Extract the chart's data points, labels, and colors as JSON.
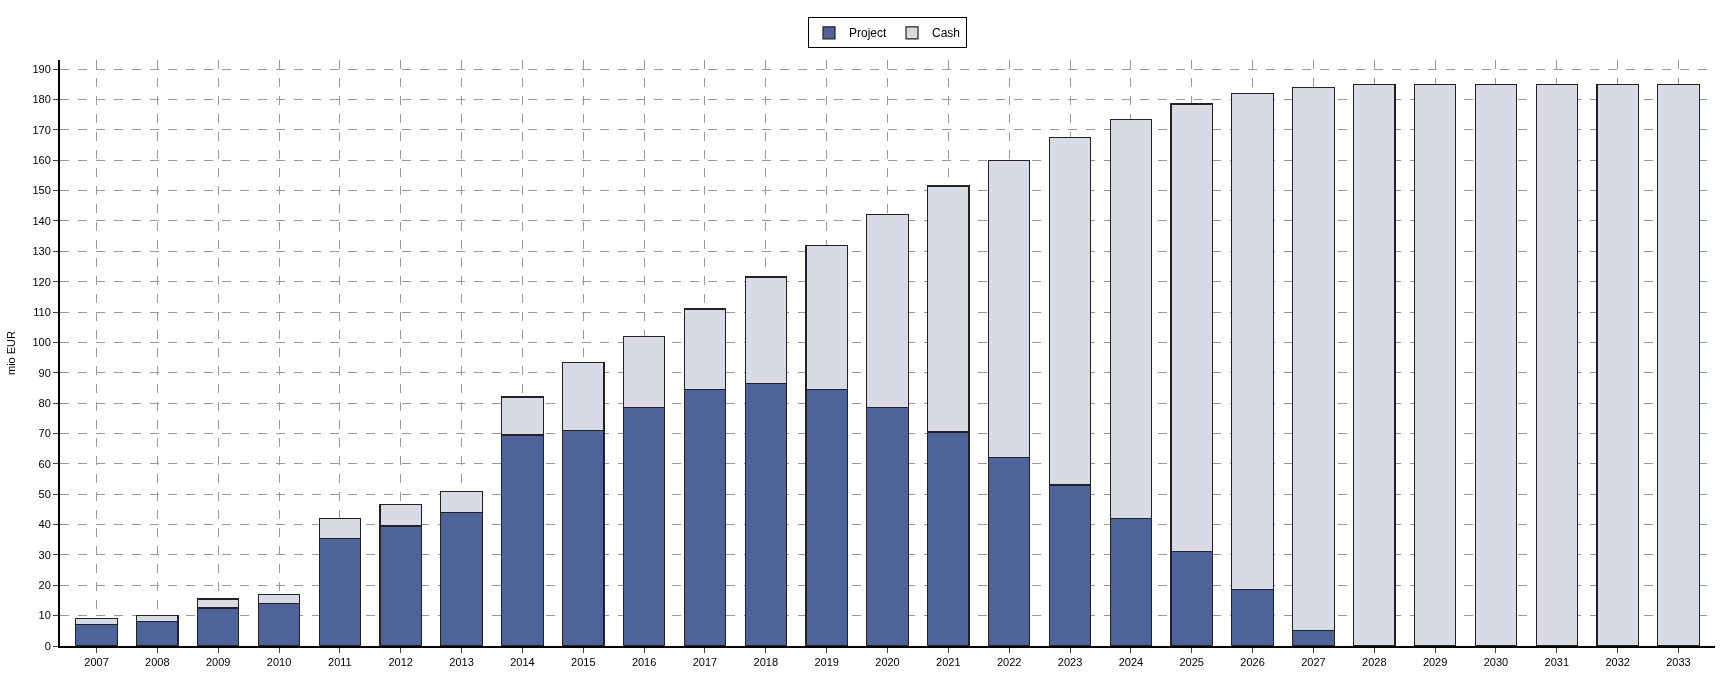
{
  "chart_data": {
    "type": "bar",
    "stacked": true,
    "ylabel": "mio EUR",
    "categories": [
      "2007",
      "2008",
      "2009",
      "2010",
      "2011",
      "2012",
      "2013",
      "2014",
      "2015",
      "2016",
      "2017",
      "2018",
      "2019",
      "2020",
      "2021",
      "2022",
      "2023",
      "2024",
      "2025",
      "2026",
      "2027",
      "2028",
      "2029",
      "2030",
      "2031",
      "2032",
      "2033"
    ],
    "series": [
      {
        "name": "Project",
        "color": "#4d6399",
        "values": [
          7,
          8,
          12.5,
          14,
          35.5,
          39.5,
          44,
          69.5,
          71,
          78.5,
          84.5,
          86.5,
          84.5,
          78.5,
          70.5,
          62,
          53,
          42,
          31,
          18.5,
          5,
          0,
          0,
          0,
          0,
          0,
          0
        ]
      },
      {
        "name": "Cash",
        "color": "#d8dae6",
        "values": [
          2,
          2,
          3,
          3,
          6.5,
          7,
          7,
          12.5,
          22.5,
          23.5,
          26.5,
          35,
          47.5,
          63.5,
          81,
          98,
          114.5,
          131.5,
          147.5,
          163.5,
          179,
          185,
          185,
          185,
          185,
          185,
          185
        ]
      }
    ],
    "ylim": [
      0,
      193
    ],
    "yticks": [
      0,
      10,
      20,
      30,
      40,
      50,
      60,
      70,
      80,
      90,
      100,
      110,
      120,
      130,
      140,
      150,
      160,
      170,
      180,
      190
    ],
    "grid": true,
    "legend": "top"
  }
}
